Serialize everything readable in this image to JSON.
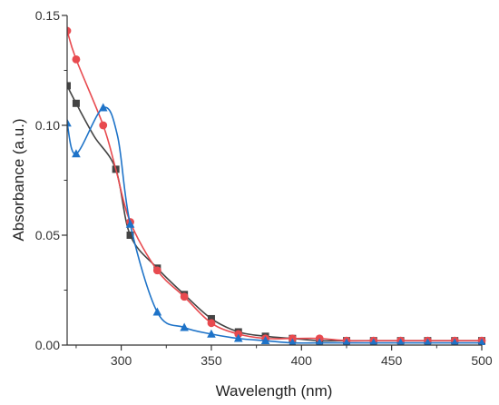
{
  "chart_data": {
    "type": "line",
    "xlabel": "Wavelength (nm)",
    "ylabel": "Absorbance (a.u.)",
    "xlim": [
      270,
      500
    ],
    "ylim": [
      0,
      0.15
    ],
    "x_ticks": [
      300,
      350,
      400,
      450,
      500
    ],
    "y_ticks": [
      0.0,
      0.05,
      0.1,
      0.15
    ],
    "x_tick_labels": [
      "300",
      "350",
      "400",
      "450",
      "500"
    ],
    "y_tick_labels": [
      "0.00",
      "0.05",
      "0.10",
      "0.15"
    ],
    "grid": false,
    "legend": "none",
    "series": [
      {
        "color": "#444444",
        "marker": "square",
        "x": [
          270,
          275,
          285,
          297,
          305,
          320,
          335,
          350,
          365,
          380,
          395,
          410,
          425,
          440,
          455,
          470,
          485,
          500
        ],
        "y": [
          0.118,
          0.11,
          0.095,
          0.08,
          0.05,
          0.035,
          0.023,
          0.012,
          0.006,
          0.004,
          0.003,
          0.002,
          0.002,
          0.002,
          0.002,
          0.002,
          0.002,
          0.002
        ],
        "marked": [
          true,
          true,
          false,
          true,
          true,
          true,
          true,
          true,
          true,
          true,
          true,
          true,
          true,
          true,
          true,
          true,
          true,
          true
        ]
      },
      {
        "color": "#e84a4f",
        "marker": "circle",
        "x": [
          270,
          275,
          290,
          297,
          305,
          320,
          335,
          350,
          365,
          380,
          395,
          410,
          425,
          440,
          455,
          470,
          485,
          500
        ],
        "y": [
          0.143,
          0.13,
          0.1,
          0.08,
          0.056,
          0.034,
          0.022,
          0.01,
          0.005,
          0.003,
          0.003,
          0.003,
          0.002,
          0.002,
          0.002,
          0.002,
          0.002,
          0.002
        ],
        "marked": [
          true,
          true,
          true,
          false,
          true,
          true,
          true,
          true,
          true,
          true,
          true,
          true,
          true,
          true,
          true,
          true,
          true,
          true
        ]
      },
      {
        "color": "#1e73c8",
        "marker": "triangle",
        "x": [
          270,
          275,
          290,
          298,
          305,
          320,
          335,
          350,
          365,
          380,
          395,
          410,
          425,
          440,
          455,
          470,
          485,
          500
        ],
        "y": [
          0.101,
          0.087,
          0.108,
          0.095,
          0.055,
          0.015,
          0.008,
          0.005,
          0.003,
          0.002,
          0.001,
          0.001,
          0.001,
          0.001,
          0.001,
          0.001,
          0.001,
          0.001
        ],
        "marked": [
          true,
          true,
          true,
          false,
          true,
          true,
          true,
          true,
          true,
          true,
          true,
          true,
          true,
          true,
          true,
          true,
          true,
          true
        ]
      }
    ]
  }
}
